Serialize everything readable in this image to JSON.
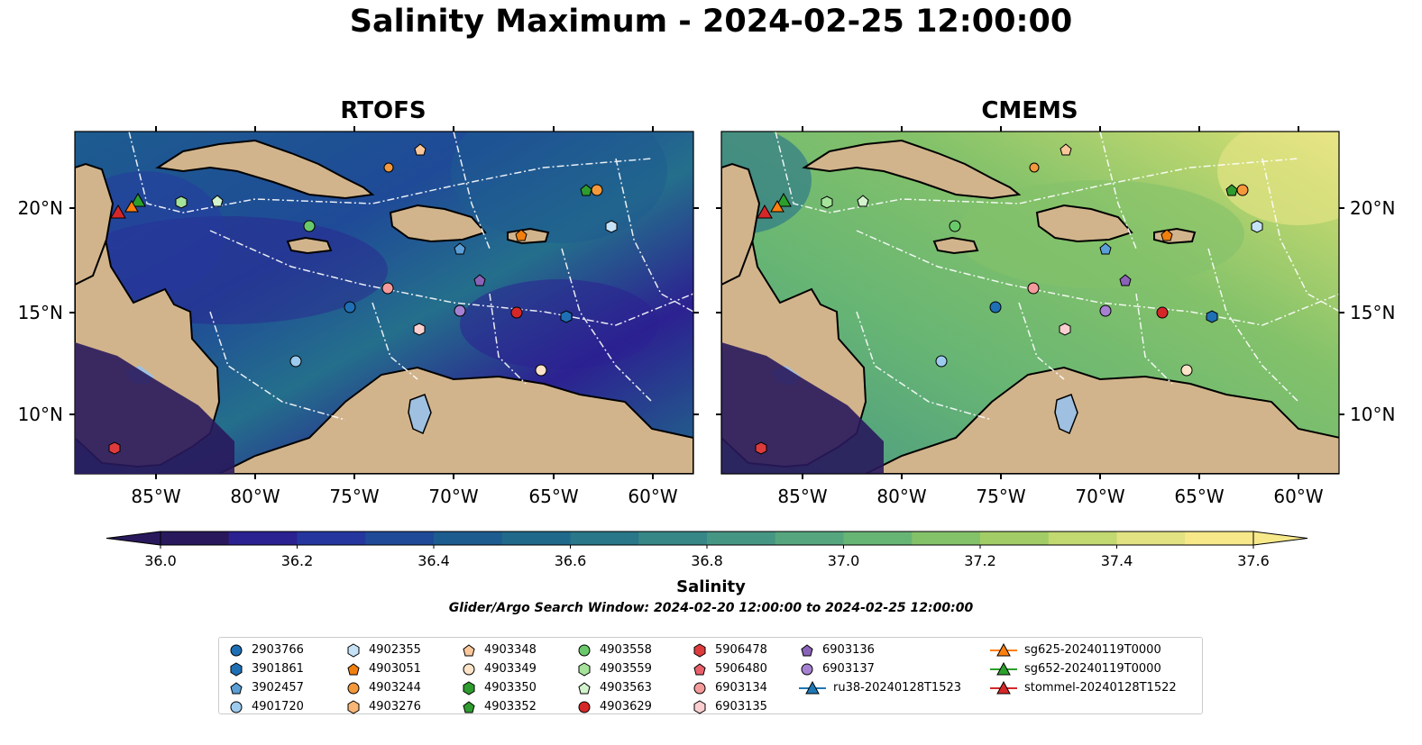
{
  "figure": {
    "title": "Salinity Maximum - 2024-02-25 12:00:00",
    "panels": [
      {
        "title": "RTOFS"
      },
      {
        "title": "CMEMS"
      }
    ],
    "lon_ticks": [
      "85°W",
      "80°W",
      "75°W",
      "70°W",
      "65°W",
      "60°W"
    ],
    "lat_ticks": [
      "20°N",
      "15°N",
      "10°N"
    ],
    "colorbar": {
      "label": "Salinity",
      "ticks": [
        "36.0",
        "36.2",
        "36.4",
        "36.6",
        "36.8",
        "37.0",
        "37.2",
        "37.4",
        "37.6"
      ],
      "range": [
        36.0,
        37.6
      ],
      "colors": [
        "#29195c",
        "#2c2191",
        "#25379f",
        "#1f4a97",
        "#1d5c8f",
        "#20698a",
        "#297788",
        "#368786",
        "#469684",
        "#55a67e",
        "#67b574",
        "#84c26a",
        "#a2cd66",
        "#c2d870",
        "#e3e283",
        "#f7e98a"
      ]
    },
    "search_window": "Glider/Argo Search Window: 2024-02-20 12:00:00 to 2024-02-25 12:00:00"
  },
  "legend": {
    "columns": [
      [
        {
          "label": "2903766",
          "marker": "circle",
          "color": "#1f6fb4"
        },
        {
          "label": "3901861",
          "marker": "hexagon",
          "color": "#1f6fb4"
        },
        {
          "label": "3902457",
          "marker": "pentagon",
          "color": "#5b9fd6"
        },
        {
          "label": "4901720",
          "marker": "circle",
          "color": "#9dcbee"
        }
      ],
      [
        {
          "label": "4902355",
          "marker": "hexagon",
          "color": "#c6e2f7"
        },
        {
          "label": "4903051",
          "marker": "pentagon",
          "color": "#f07f0e"
        },
        {
          "label": "4903244",
          "marker": "circle",
          "color": "#f4983c"
        },
        {
          "label": "4903276",
          "marker": "hexagon",
          "color": "#f8b676"
        }
      ],
      [
        {
          "label": "4903348",
          "marker": "pentagon",
          "color": "#f9c79a"
        },
        {
          "label": "4903349",
          "marker": "circle",
          "color": "#fde3c8"
        },
        {
          "label": "4903350",
          "marker": "hexagon",
          "color": "#2e9c2e"
        },
        {
          "label": "4903352",
          "marker": "pentagon",
          "color": "#2e9c2e"
        }
      ],
      [
        {
          "label": "4903558",
          "marker": "circle",
          "color": "#69c96a"
        },
        {
          "label": "4903559",
          "marker": "hexagon",
          "color": "#a5e39b"
        },
        {
          "label": "4903563",
          "marker": "pentagon",
          "color": "#d3f3cc"
        },
        {
          "label": "4903629",
          "marker": "circle",
          "color": "#d62728"
        }
      ],
      [
        {
          "label": "5906478",
          "marker": "hexagon",
          "color": "#de3b3d"
        },
        {
          "label": "5906480",
          "marker": "pentagon",
          "color": "#e9606b"
        },
        {
          "label": "6903134",
          "marker": "circle",
          "color": "#f59a9b"
        },
        {
          "label": "6903135",
          "marker": "hexagon",
          "color": "#fbcfd0"
        }
      ],
      [
        {
          "label": "6903136",
          "marker": "pentagon",
          "color": "#8a63b8"
        },
        {
          "label": "6903137",
          "marker": "circle",
          "color": "#a681d2"
        },
        {
          "label": "ru38-20240128T1523",
          "marker": "triangle-line",
          "color": "#1f77b4"
        }
      ],
      [
        {
          "label": "sg625-20240119T0000",
          "marker": "triangle-line",
          "color": "#ff7f0e"
        },
        {
          "label": "sg652-20240119T0000",
          "marker": "triangle-line",
          "color": "#2ca02c"
        },
        {
          "label": "stommel-20240128T1522",
          "marker": "triangle-line",
          "color": "#d62728"
        }
      ]
    ]
  }
}
